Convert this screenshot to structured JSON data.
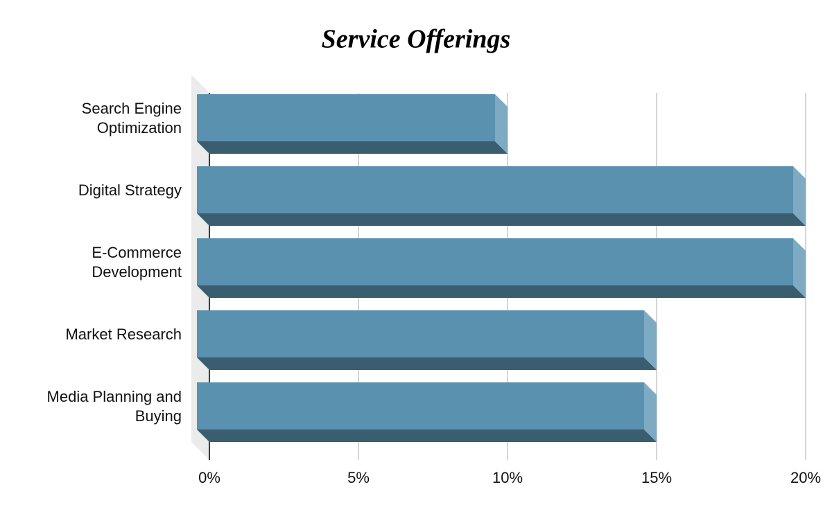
{
  "chart_data": {
    "type": "bar3d",
    "orientation": "horizontal",
    "title": "Service Offerings",
    "categories": [
      "Search Engine Optimization",
      "Digital Strategy",
      "E-Commerce Development",
      "Market Research",
      "Media Planning and Buying"
    ],
    "values": [
      10,
      20,
      20,
      15,
      15
    ],
    "color": "#5a91af",
    "xlim": [
      0,
      20
    ],
    "xticks": [
      {
        "value": 0,
        "label": "0%"
      },
      {
        "value": 5,
        "label": "5%"
      },
      {
        "value": 10,
        "label": "10%"
      },
      {
        "value": 15,
        "label": "15%"
      },
      {
        "value": 20,
        "label": "20%"
      }
    ],
    "grid": true
  }
}
